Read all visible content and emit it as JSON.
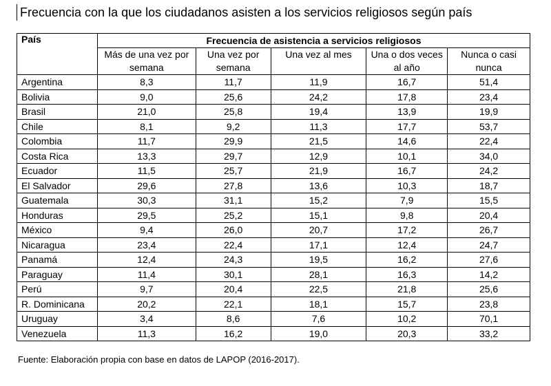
{
  "title": "Frecuencia con la que los ciudadanos asisten a los servicios religiosos según país",
  "table": {
    "country_header": "País",
    "group_header": "Frecuencia de asistencia a servicios religiosos",
    "columns": [
      "Más de una vez por semana",
      "Una vez por semana",
      "Una vez al mes",
      "Una o dos veces al año",
      "Nunca o casi nunca"
    ],
    "rows": [
      {
        "country": "Argentina",
        "values": [
          "8,3",
          "11,7",
          "11,9",
          "16,7",
          "51,4"
        ]
      },
      {
        "country": "Bolivia",
        "values": [
          "9,0",
          "25,6",
          "24,2",
          "17,8",
          "23,4"
        ]
      },
      {
        "country": "Brasil",
        "values": [
          "21,0",
          "25,8",
          "19,4",
          "13,9",
          "19,9"
        ]
      },
      {
        "country": "Chile",
        "values": [
          "8,1",
          "9,2",
          "11,3",
          "17,7",
          "53,7"
        ]
      },
      {
        "country": "Colombia",
        "values": [
          "11,7",
          "29,9",
          "21,5",
          "14,6",
          "22,4"
        ]
      },
      {
        "country": "Costa Rica",
        "values": [
          "13,3",
          "29,7",
          "12,9",
          "10,1",
          "34,0"
        ]
      },
      {
        "country": "Ecuador",
        "values": [
          "11,5",
          "25,7",
          "21,9",
          "16,7",
          "24,2"
        ]
      },
      {
        "country": "El Salvador",
        "values": [
          "29,6",
          "27,8",
          "13,6",
          "10,3",
          "18,7"
        ]
      },
      {
        "country": "Guatemala",
        "values": [
          "30,3",
          "31,1",
          "15,2",
          "7,9",
          "15,5"
        ]
      },
      {
        "country": "Honduras",
        "values": [
          "29,5",
          "25,2",
          "15,1",
          "9,8",
          "20,4"
        ]
      },
      {
        "country": "México",
        "values": [
          "9,4",
          "26,0",
          "20,7",
          "17,2",
          "26,7"
        ]
      },
      {
        "country": "Nicaragua",
        "values": [
          "23,4",
          "22,4",
          "17,1",
          "12,4",
          "24,7"
        ]
      },
      {
        "country": "Panamá",
        "values": [
          "12,4",
          "24,3",
          "19,5",
          "16,2",
          "27,6"
        ]
      },
      {
        "country": "Paraguay",
        "values": [
          "11,4",
          "30,1",
          "28,1",
          "16,3",
          "14,2"
        ]
      },
      {
        "country": "Perú",
        "values": [
          "9,7",
          "20,4",
          "22,5",
          "21,8",
          "25,6"
        ]
      },
      {
        "country": "R. Dominicana",
        "values": [
          "20,2",
          "22,1",
          "18,1",
          "15,7",
          "23,8"
        ]
      },
      {
        "country": "Uruguay",
        "values": [
          "3,4",
          "8,6",
          "7,6",
          "10,2",
          "70,1"
        ]
      },
      {
        "country": "Venezuela",
        "values": [
          "11,3",
          "16,2",
          "19,0",
          "20,3",
          "33,2"
        ]
      }
    ]
  },
  "source": "Fuente: Elaboración propia con base en datos de LAPOP (2016-2017)."
}
